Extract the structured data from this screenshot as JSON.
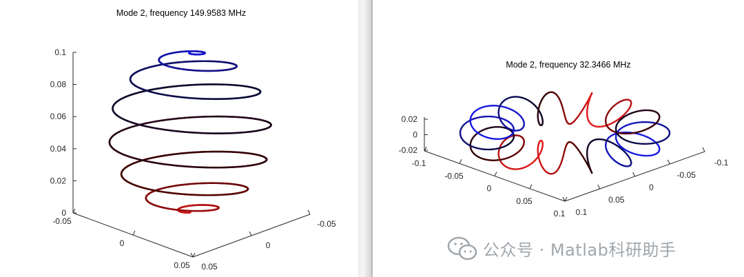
{
  "chart_data": [
    {
      "type": "line3d",
      "title": "Mode 2, frequency 149.9583 MHz",
      "description": "Spherical helix antenna current distribution",
      "zlim": [
        0,
        0.1
      ],
      "z_ticks": [
        "0",
        "0.02",
        "0.04",
        "0.06",
        "0.08",
        "0.1"
      ],
      "x_ticks": [
        "-0.05",
        "0",
        "0.05"
      ],
      "y_ticks": [
        "-0.05",
        "0",
        "0.05"
      ],
      "sphere_radius": 0.05,
      "turns": 10,
      "colormap": [
        "#e21a1a",
        "#3a0000",
        "#0a0a30",
        "#1a1ae6"
      ]
    },
    {
      "type": "line3d",
      "title": "Mode 2, frequency 32.3466 MHz",
      "description": "Toroidal helix antenna current distribution",
      "zlim": [
        -0.02,
        0.02
      ],
      "z_ticks": [
        "-0.02",
        "0",
        "0.02"
      ],
      "x_ticks": [
        "-0.1",
        "-0.05",
        "0",
        "0.05",
        "0.1"
      ],
      "y_ticks": [
        "0.1",
        "0.05",
        "0",
        "-0.05",
        "-0.1"
      ],
      "major_radius": 0.085,
      "minor_radius": 0.015,
      "colormap": [
        "#e21a1a",
        "#3a0000",
        "#0a0a30",
        "#1a1ae6"
      ]
    }
  ],
  "watermark": {
    "text": "公众号 · Matlab科研助手"
  }
}
